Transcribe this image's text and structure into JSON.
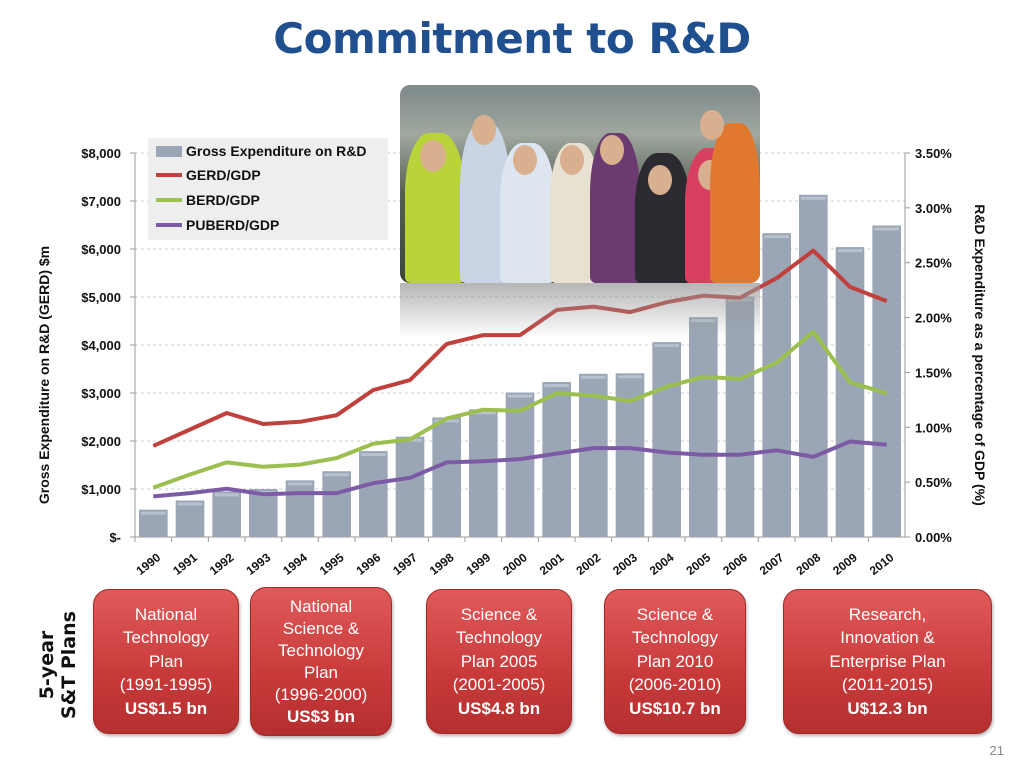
{
  "title": "Commitment to R&D",
  "page_number": "21",
  "plans_label": [
    "5-year",
    "S&T Plans"
  ],
  "plans": [
    {
      "lines": [
        "National",
        "Technology",
        "Plan",
        "(1991-1995)"
      ],
      "amount": "US$1.5 bn"
    },
    {
      "lines": [
        "National",
        "Science &",
        "Technology",
        "Plan",
        "(1996-2000)"
      ],
      "amount": "US$3 bn"
    },
    {
      "lines": [
        "Science &",
        "Technology",
        "Plan 2005",
        "(2001-2005)"
      ],
      "amount": "US$4.8 bn"
    },
    {
      "lines": [
        "Science &",
        "Technology",
        "Plan 2010",
        "(2006-2010)"
      ],
      "amount": "US$10.7 bn"
    },
    {
      "lines": [
        "Research,",
        "Innovation &",
        "Enterprise Plan",
        "(2011-2015)"
      ],
      "amount": "U$12.3 bn"
    }
  ],
  "colors": {
    "bar": "#9aa6b5",
    "gerd": "#c0403c",
    "berd": "#9bc04f",
    "puberd": "#7d5aa6",
    "title": "#1f4f8f",
    "plan": "#c83a3a"
  },
  "chart_data": {
    "type": "bar+line",
    "categories": [
      "1990",
      "1991",
      "1992",
      "1993",
      "1994",
      "1995",
      "1996",
      "1997",
      "1998",
      "1999",
      "2000",
      "2001",
      "2002",
      "2003",
      "2004",
      "2005",
      "2006",
      "2007",
      "2008",
      "2009",
      "2010"
    ],
    "ylabel": "Gross Expenditure on R&D (GERD) $m",
    "y2label": "R&D Expenditure as a percentage of GDP (%)",
    "ylim": [
      0,
      8000
    ],
    "y2lim": [
      0,
      3.5
    ],
    "yticks": [
      "$-",
      "$1,000",
      "$2,000",
      "$3,000",
      "$4,000",
      "$5,000",
      "$6,000",
      "$7,000",
      "$8,000"
    ],
    "y2ticks": [
      "0.00%",
      "0.50%",
      "1.00%",
      "1.50%",
      "2.00%",
      "2.50%",
      "3.00%",
      "3.50%"
    ],
    "grid": true,
    "legend": "top-left",
    "series": [
      {
        "name": "Gross Expenditure on R&D",
        "axis": "left",
        "kind": "bar",
        "values": [
          570,
          760,
          950,
          1000,
          1180,
          1370,
          1790,
          2090,
          2490,
          2660,
          3010,
          3230,
          3400,
          3410,
          4060,
          4580,
          5010,
          6330,
          7130,
          6040,
          6490
        ]
      },
      {
        "name": "GERD/GDP",
        "axis": "right",
        "kind": "line",
        "values": [
          0.83,
          0.98,
          1.13,
          1.03,
          1.05,
          1.11,
          1.34,
          1.43,
          1.76,
          1.84,
          1.84,
          2.07,
          2.1,
          2.05,
          2.14,
          2.2,
          2.18,
          2.36,
          2.61,
          2.28,
          2.15
        ]
      },
      {
        "name": "BERD/GDP",
        "axis": "right",
        "kind": "line",
        "values": [
          0.45,
          0.57,
          0.68,
          0.64,
          0.66,
          0.72,
          0.85,
          0.89,
          1.08,
          1.16,
          1.15,
          1.31,
          1.29,
          1.24,
          1.37,
          1.46,
          1.44,
          1.59,
          1.87,
          1.41,
          1.31
        ]
      },
      {
        "name": "PUBERD/GDP",
        "axis": "right",
        "kind": "line",
        "values": [
          0.37,
          0.4,
          0.44,
          0.39,
          0.4,
          0.4,
          0.49,
          0.54,
          0.68,
          0.69,
          0.71,
          0.76,
          0.81,
          0.81,
          0.77,
          0.75,
          0.75,
          0.79,
          0.73,
          0.87,
          0.84
        ]
      }
    ]
  }
}
